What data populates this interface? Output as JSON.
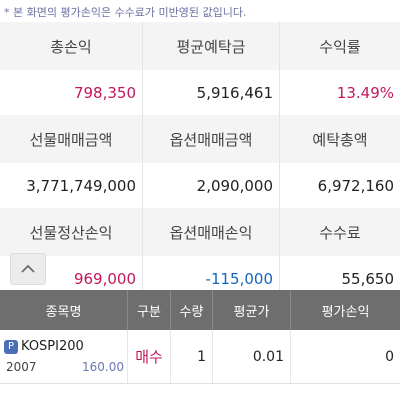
{
  "notice": "* 본 화면의 평가손익은 수수료가 미반영된 값입니다.",
  "summary": {
    "row1_labels": [
      "총손익",
      "평균예탁금",
      "수익률"
    ],
    "row1_values": [
      "798,350",
      "5,916,461",
      "13.49%"
    ],
    "row2_labels": [
      "선물매매금액",
      "옵션매매금액",
      "예탁총액"
    ],
    "row2_values": [
      "3,771,749,000",
      "2,090,000",
      "6,972,160"
    ],
    "row3_labels": [
      "선물정산손익",
      "옵션매매손익",
      "수수료"
    ],
    "row3_values": [
      "969,000",
      "-115,000",
      "55,650"
    ]
  },
  "colors": {
    "positive": "#c2185b",
    "negative": "#1565c0",
    "header_bg": "#6e6e6e"
  },
  "table": {
    "headers": [
      "종목명",
      "구분",
      "수량",
      "평균가",
      "평가손익"
    ],
    "rows": [
      {
        "badge": "P",
        "name": "KOSPI200",
        "code": "2007",
        "price": "160.00",
        "side": "매수",
        "qty": "1",
        "avg": "0.01",
        "pnl": "0"
      }
    ]
  }
}
